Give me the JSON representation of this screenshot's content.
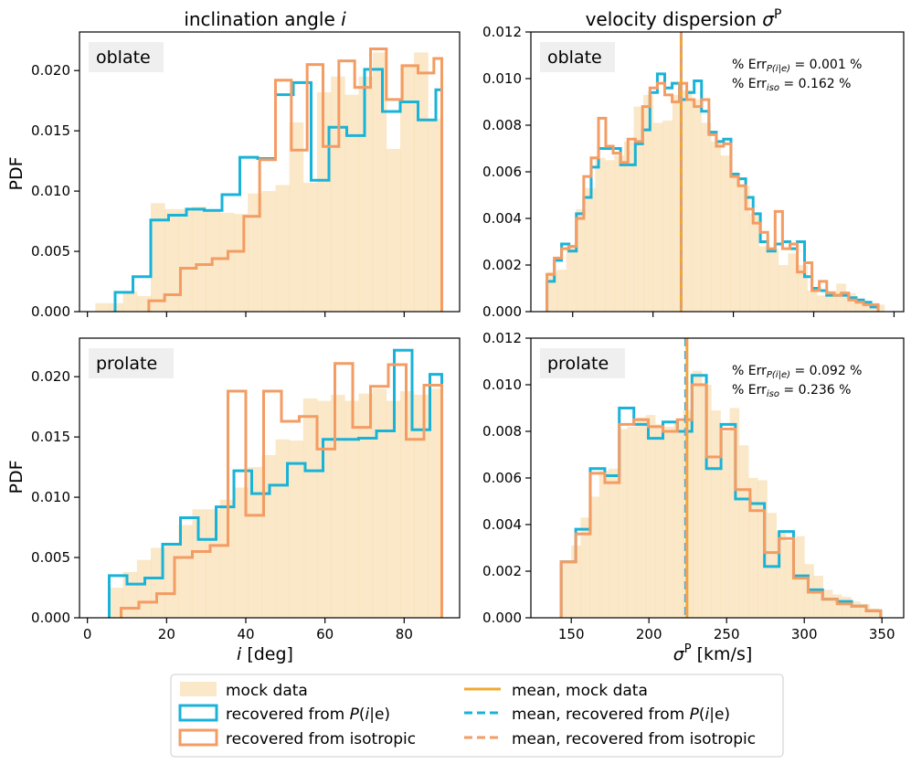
{
  "figure": {
    "col_titles": {
      "left": "inclination angle ",
      "left_italic": "i",
      "right": "velocity dispersion ",
      "right_italic": "σ",
      "right_sup": "P"
    },
    "ylabel": "PDF",
    "xlabel_left": {
      "italic": "i",
      "rest": " [deg]"
    },
    "xlabel_right": {
      "italic": "σ",
      "sup": "P",
      "rest": " [km/s]"
    },
    "row_labels": [
      "oblate",
      "prolate"
    ]
  },
  "legend": {
    "items": [
      {
        "label": "mock data",
        "kind": "patch",
        "color": "#f6d59a"
      },
      {
        "label": "recovered from ",
        "italic": "P",
        "suffix": "(",
        "italic2": "i",
        "suffix2": "|e)",
        "kind": "step",
        "color": "#1ab3d8"
      },
      {
        "label": "recovered from isotropic",
        "kind": "step",
        "color": "#f39c63"
      },
      {
        "label": "mean, mock data",
        "kind": "line",
        "color": "#f0a830"
      },
      {
        "label": "mean, recovered from ",
        "italic": "P",
        "suffix": "(",
        "italic2": "i",
        "suffix2": "|e)",
        "kind": "dash",
        "color": "#1ab3d8"
      },
      {
        "label": "mean, recovered from isotropic",
        "kind": "dash",
        "color": "#f39c63"
      }
    ]
  },
  "colors": {
    "mock": "#f6d59a",
    "mock_mean": "#f0a830",
    "pie": "#1ab3d8",
    "iso": "#f39c63"
  },
  "chart_data": [
    {
      "id": "inc_oblate",
      "type": "histogram",
      "row": 0,
      "col": 0,
      "label": "oblate",
      "xlim": [
        -2,
        94
      ],
      "ylim": [
        0,
        0.0232
      ],
      "xticks": [
        0,
        20,
        40,
        60,
        80
      ],
      "yticks": [
        0.0,
        0.005,
        0.01,
        0.015,
        0.02
      ],
      "ytick_labels": [
        "0.000",
        "0.005",
        "0.010",
        "0.015",
        "0.020"
      ],
      "show_xticklabels": false,
      "mock": {
        "edges": [
          2,
          5.5,
          9,
          12.5,
          16,
          19.5,
          23,
          26.5,
          30,
          33.5,
          37,
          40.5,
          44,
          47.5,
          51,
          54.5,
          58,
          61.5,
          65,
          68.5,
          72,
          75.5,
          79,
          82.5,
          86,
          89.5
        ],
        "values": [
          0.0007,
          0.0007,
          0.0017,
          0.0013,
          0.009,
          0.0085,
          0.0085,
          0.0087,
          0.0083,
          0.0082,
          0.0081,
          0.0098,
          0.01,
          0.0105,
          0.0157,
          0.0107,
          0.0182,
          0.0195,
          0.018,
          0.0195,
          0.0215,
          0.0135,
          0.0205,
          0.0215,
          0.016
        ]
      },
      "pie": {
        "edges": [
          7,
          11.5,
          16,
          20.5,
          25,
          29.5,
          34,
          38.5,
          43,
          47.5,
          52,
          56.5,
          61,
          65.5,
          70,
          74.5,
          79,
          83.5,
          88,
          89.5
        ],
        "values": [
          0.0016,
          0.0029,
          0.0076,
          0.008,
          0.0085,
          0.0084,
          0.0097,
          0.0128,
          0.0127,
          0.018,
          0.019,
          0.0109,
          0.0153,
          0.0146,
          0.0201,
          0.0166,
          0.0174,
          0.0159,
          0.0184
        ]
      },
      "iso": {
        "edges": [
          15.5,
          19.5,
          23.5,
          27.5,
          31.5,
          35.5,
          39.5,
          43.5,
          47.5,
          51.5,
          55.5,
          59.5,
          63.5,
          67.5,
          71.5,
          75.5,
          79.5,
          83.5,
          87.5,
          89.5
        ],
        "values": [
          0.0009,
          0.0014,
          0.0036,
          0.0039,
          0.0044,
          0.005,
          0.0079,
          0.0126,
          0.0192,
          0.0134,
          0.0205,
          0.0137,
          0.0208,
          0.0186,
          0.0218,
          0.0176,
          0.0204,
          0.0198,
          0.021
        ]
      }
    },
    {
      "id": "vel_oblate",
      "type": "histogram",
      "row": 0,
      "col": 1,
      "label": "oblate",
      "xlim": [
        124,
        356
      ],
      "ylim": [
        0,
        0.012
      ],
      "xticks": [
        150,
        200,
        250,
        300,
        350
      ],
      "yticks": [
        0.0,
        0.002,
        0.004,
        0.006,
        0.008,
        0.01,
        0.012
      ],
      "ytick_labels": [
        "0.000",
        "0.002",
        "0.004",
        "0.006",
        "0.008",
        "0.010",
        "0.012"
      ],
      "show_xticklabels": false,
      "err_pie": "% Err",
      "err_pie_sub": "P(i|e)",
      "err_pie_val": " = 0.001 %",
      "err_iso": "% Err",
      "err_iso_sub": "iso",
      "err_iso_val": " = 0.162 %",
      "means": {
        "mock": 217.5,
        "pie": 217.5,
        "iso": 217.5
      },
      "mock": {
        "edges": [
          134,
          140,
          146,
          152,
          158,
          164,
          170,
          176,
          182,
          188,
          194,
          200,
          206,
          212,
          218,
          224,
          230,
          236,
          242,
          248,
          254,
          260,
          266,
          272,
          278,
          284,
          290,
          296,
          302,
          308,
          314,
          320,
          326,
          332,
          338,
          344
        ],
        "values": [
          0.0017,
          0.0018,
          0.0028,
          0.0044,
          0.0053,
          0.0066,
          0.0065,
          0.0067,
          0.0073,
          0.0088,
          0.0093,
          0.0081,
          0.0082,
          0.0093,
          0.0095,
          0.0091,
          0.0081,
          0.0073,
          0.0067,
          0.0058,
          0.0054,
          0.0042,
          0.0028,
          0.0027,
          0.002,
          0.0025,
          0.002,
          0.0009,
          0.0007,
          0.0009,
          0.0012,
          0.0008,
          0.0005,
          0.0003,
          0.0003
        ]
      },
      "pie": {
        "edges": [
          134,
          138.6,
          143.1,
          147.7,
          152.3,
          156.9,
          161.5,
          166.1,
          170.6,
          175.2,
          179.8,
          184.4,
          189,
          193.5,
          198.1,
          202.7,
          207.3,
          211.9,
          216.5,
          221,
          225.6,
          230.2,
          234.8,
          239.4,
          243.9,
          248.5,
          253.1,
          257.7,
          262.3,
          266.8,
          271.4,
          276,
          280.6,
          285.2,
          289.8,
          294.3,
          298.9,
          303.5,
          308.1,
          312.7,
          317.2,
          321.8,
          326.4,
          331,
          335.6,
          340.1
        ],
        "values": [
          0.0013,
          0.0022,
          0.0029,
          0.0026,
          0.0042,
          0.0049,
          0.0062,
          0.007,
          0.007,
          0.007,
          0.0063,
          0.0063,
          0.0072,
          0.0078,
          0.0094,
          0.0102,
          0.0096,
          0.0098,
          0.0091,
          0.0094,
          0.0099,
          0.0086,
          0.0077,
          0.0073,
          0.0074,
          0.0059,
          0.0057,
          0.0049,
          0.0042,
          0.003,
          0.0026,
          0.0029,
          0.003,
          0.0027,
          0.003,
          0.0015,
          0.001,
          0.0009,
          0.0007,
          0.0007,
          0.0007,
          0.0006,
          0.0005,
          0.0004,
          0.0002
        ]
      },
      "iso": {
        "edges": [
          134,
          138.6,
          143.1,
          147.7,
          152.3,
          156.9,
          161.5,
          166.1,
          170.6,
          175.2,
          179.8,
          184.4,
          189,
          193.5,
          198.1,
          202.7,
          207.3,
          211.9,
          216.5,
          221,
          225.6,
          230.2,
          234.8,
          239.4,
          243.9,
          248.5,
          253.1,
          257.7,
          262.3,
          266.8,
          271.4,
          276,
          280.6,
          285.2,
          289.8,
          294.3,
          298.9,
          303.5,
          308.1,
          312.7,
          317.2,
          321.8,
          326.4,
          331,
          335.6,
          340.1
        ],
        "values": [
          0.0016,
          0.0023,
          0.0027,
          0.0028,
          0.004,
          0.0058,
          0.0066,
          0.0083,
          0.0071,
          0.0068,
          0.0064,
          0.0074,
          0.0073,
          0.0088,
          0.0096,
          0.0098,
          0.0093,
          0.009,
          0.0098,
          0.0091,
          0.0088,
          0.0091,
          0.0076,
          0.0071,
          0.0072,
          0.0058,
          0.0054,
          0.0044,
          0.0038,
          0.0034,
          0.0027,
          0.0043,
          0.0027,
          0.0029,
          0.0017,
          0.0021,
          0.0009,
          0.0013,
          0.0008,
          0.0007,
          0.0008,
          0.0005,
          0.0004,
          0.0003,
          0.0003
        ]
      }
    },
    {
      "id": "inc_prolate",
      "type": "histogram",
      "row": 1,
      "col": 0,
      "label": "prolate",
      "xlim": [
        -2,
        94
      ],
      "ylim": [
        0,
        0.0232
      ],
      "xticks": [
        0,
        20,
        40,
        60,
        80
      ],
      "yticks": [
        0.0,
        0.005,
        0.01,
        0.015,
        0.02
      ],
      "ytick_labels": [
        "0.000",
        "0.005",
        "0.010",
        "0.015",
        "0.020"
      ],
      "xtick_labels": [
        "0",
        "20",
        "40",
        "60",
        "80"
      ],
      "show_xticklabels": true,
      "mock": {
        "edges": [
          5.5,
          9,
          12.5,
          16,
          19.5,
          23,
          26.5,
          30,
          33.5,
          37,
          40.5,
          44,
          47.5,
          51,
          54.5,
          58,
          61.5,
          65,
          68.5,
          72,
          75.5,
          79,
          82.5,
          86,
          89.5
        ],
        "values": [
          0.0025,
          0.0038,
          0.0048,
          0.0058,
          0.0062,
          0.0077,
          0.009,
          0.009,
          0.0098,
          0.0108,
          0.0125,
          0.0135,
          0.0148,
          0.0147,
          0.0182,
          0.018,
          0.0185,
          0.018,
          0.0186,
          0.019,
          0.018,
          0.0188,
          0.0185,
          0.019
        ]
      },
      "pie": {
        "edges": [
          5.5,
          10,
          14.5,
          19,
          23.5,
          28,
          32.5,
          37,
          41.5,
          46,
          50.5,
          55,
          59.5,
          64,
          68.5,
          73,
          77.5,
          82,
          86.5,
          89.5
        ],
        "values": [
          0.0035,
          0.0028,
          0.0033,
          0.0061,
          0.0083,
          0.0065,
          0.0092,
          0.0122,
          0.0103,
          0.011,
          0.0128,
          0.0122,
          0.0148,
          0.0148,
          0.0149,
          0.0155,
          0.0222,
          0.0156,
          0.0202
        ]
      },
      "iso": {
        "edges": [
          8.5,
          13,
          17.5,
          22,
          26.5,
          31,
          35.5,
          40,
          44.5,
          49,
          53.5,
          58,
          62.5,
          67,
          71.5,
          76,
          80.5,
          85,
          89.5
        ],
        "values": [
          0.0008,
          0.0013,
          0.002,
          0.005,
          0.0055,
          0.006,
          0.0188,
          0.0085,
          0.0188,
          0.0163,
          0.0167,
          0.014,
          0.0211,
          0.0158,
          0.0192,
          0.021,
          0.0148,
          0.0193
        ]
      }
    },
    {
      "id": "vel_prolate",
      "type": "histogram",
      "row": 1,
      "col": 1,
      "label": "prolate",
      "xlim": [
        124,
        364
      ],
      "ylim": [
        0,
        0.012
      ],
      "xticks": [
        150,
        200,
        250,
        300,
        350
      ],
      "yticks": [
        0.0,
        0.002,
        0.004,
        0.006,
        0.008,
        0.01,
        0.012
      ],
      "ytick_labels": [
        "0.000",
        "0.002",
        "0.004",
        "0.006",
        "0.008",
        "0.010",
        "0.012"
      ],
      "xtick_labels": [
        "150",
        "200",
        "250",
        "300",
        "350"
      ],
      "show_xticklabels": true,
      "err_pie": "% Err",
      "err_pie_sub": "P(i|e)",
      "err_pie_val": " = 0.092 %",
      "err_iso": "% Err",
      "err_iso_sub": "iso",
      "err_iso_val": " = 0.236 %",
      "means": {
        "mock": 224.5,
        "pie": 223.5,
        "iso": 224
      },
      "mock": {
        "edges": [
          144,
          150,
          156,
          162,
          168,
          174,
          180,
          186,
          192,
          198,
          204,
          210,
          216,
          222,
          228,
          234,
          240,
          246,
          252,
          258,
          264,
          270,
          276,
          282,
          288,
          294,
          300,
          306,
          312,
          318,
          324,
          330,
          336,
          342,
          348
        ],
        "values": [
          0.0024,
          0.0031,
          0.0043,
          0.0052,
          0.0063,
          0.0064,
          0.0081,
          0.0082,
          0.0086,
          0.0087,
          0.0083,
          0.0082,
          0.0084,
          0.0089,
          0.0106,
          0.01,
          0.0089,
          0.008,
          0.009,
          0.0074,
          0.006,
          0.0059,
          0.0045,
          0.0037,
          0.0033,
          0.0035,
          0.0023,
          0.0018,
          0.0012,
          0.001,
          0.0009,
          0.0007,
          0.0006,
          0.0004
        ]
      },
      "pie": {
        "edges": [
          143.5,
          152.9,
          162.2,
          171.6,
          180.9,
          190.3,
          199.6,
          209,
          218.3,
          227.7,
          237,
          246.4,
          255.7,
          265.1,
          274.4,
          283.8,
          293.1,
          302.5,
          311.8,
          321.2,
          330.5,
          339.9,
          349.2
        ],
        "values": [
          0.0024,
          0.0038,
          0.0064,
          0.0061,
          0.009,
          0.0083,
          0.0077,
          0.0084,
          0.008,
          0.0104,
          0.0064,
          0.0083,
          0.0051,
          0.0049,
          0.0022,
          0.0037,
          0.0018,
          0.0012,
          0.0008,
          0.0007,
          0.0005,
          0.0003
        ]
      },
      "iso": {
        "edges": [
          143.5,
          152.9,
          162.2,
          171.6,
          180.9,
          190.3,
          199.6,
          209,
          218.3,
          227.7,
          237,
          246.4,
          255.7,
          265.1,
          274.4,
          283.8,
          293.1,
          302.5,
          311.8,
          321.2,
          330.5,
          339.9,
          349.2
        ],
        "values": [
          0.0024,
          0.0036,
          0.0062,
          0.0058,
          0.0083,
          0.0085,
          0.0082,
          0.008,
          0.0085,
          0.01,
          0.0069,
          0.0081,
          0.0055,
          0.0046,
          0.0028,
          0.0034,
          0.0017,
          0.0011,
          0.0008,
          0.0006,
          0.0005,
          0.0003
        ]
      }
    }
  ]
}
